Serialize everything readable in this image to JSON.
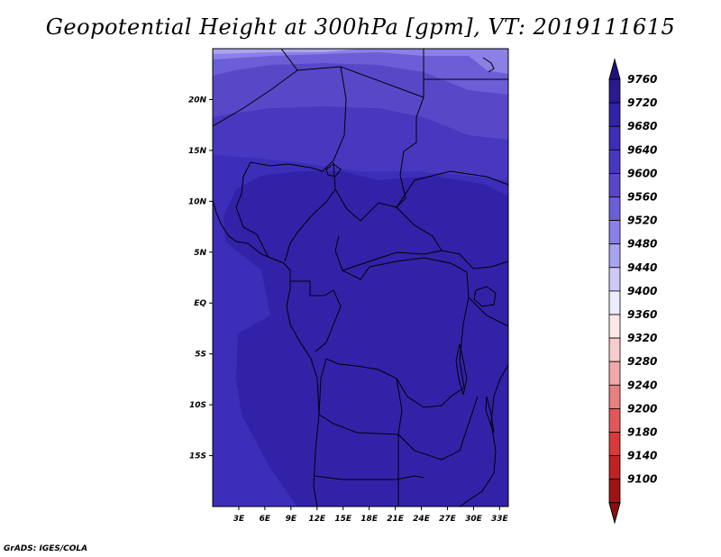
{
  "title": "Geopotential Height at 300hPa [gpm], VT: 2019111615",
  "credit": "GrADS: IGES/COLA",
  "map": {
    "lon_range": [
      0,
      34
    ],
    "lat_range": [
      -20,
      25
    ],
    "x_ticks": [
      {
        "lon": 3,
        "label": "3E"
      },
      {
        "lon": 6,
        "label": "6E"
      },
      {
        "lon": 9,
        "label": "9E"
      },
      {
        "lon": 12,
        "label": "12E"
      },
      {
        "lon": 15,
        "label": "15E"
      },
      {
        "lon": 18,
        "label": "18E"
      },
      {
        "lon": 21,
        "label": "21E"
      },
      {
        "lon": 24,
        "label": "24E"
      },
      {
        "lon": 27,
        "label": "27E"
      },
      {
        "lon": 30,
        "label": "30E"
      },
      {
        "lon": 33,
        "label": "33E"
      }
    ],
    "y_ticks": [
      {
        "lat": 20,
        "label": "20N"
      },
      {
        "lat": 15,
        "label": "15N"
      },
      {
        "lat": 10,
        "label": "10N"
      },
      {
        "lat": 5,
        "label": "5N"
      },
      {
        "lat": 0,
        "label": "EQ"
      },
      {
        "lat": -5,
        "label": "5S"
      },
      {
        "lat": -10,
        "label": "10S"
      },
      {
        "lat": -15,
        "label": "15S"
      }
    ]
  },
  "colorbar": {
    "levels": [
      "9760",
      "9720",
      "9680",
      "9640",
      "9600",
      "9560",
      "9520",
      "9480",
      "9440",
      "9400",
      "9360",
      "9320",
      "9280",
      "9240",
      "9200",
      "9180",
      "9140",
      "9100"
    ],
    "colors": [
      "#2a1a90",
      "#3222a8",
      "#3c2eb8",
      "#4838c0",
      "#5848c8",
      "#6b5ed6",
      "#8a80e6",
      "#aaa4f0",
      "#cdcaf8",
      "#ececfc",
      "#fde8e8",
      "#f8cccc",
      "#f0a8a8",
      "#e88080",
      "#e05858",
      "#d83a3a",
      "#c02222",
      "#a01414"
    ],
    "top_color": "#1e1280",
    "bottom_color": "#8a1010"
  },
  "field_colors": {
    "c9720": "#3222a8",
    "c9680": "#3c2eb8",
    "c9640": "#4838c0",
    "c9600": "#5848c8",
    "c9560": "#6b5ed6",
    "c9520": "#8a80e6",
    "c9480": "#aaa4f0"
  }
}
